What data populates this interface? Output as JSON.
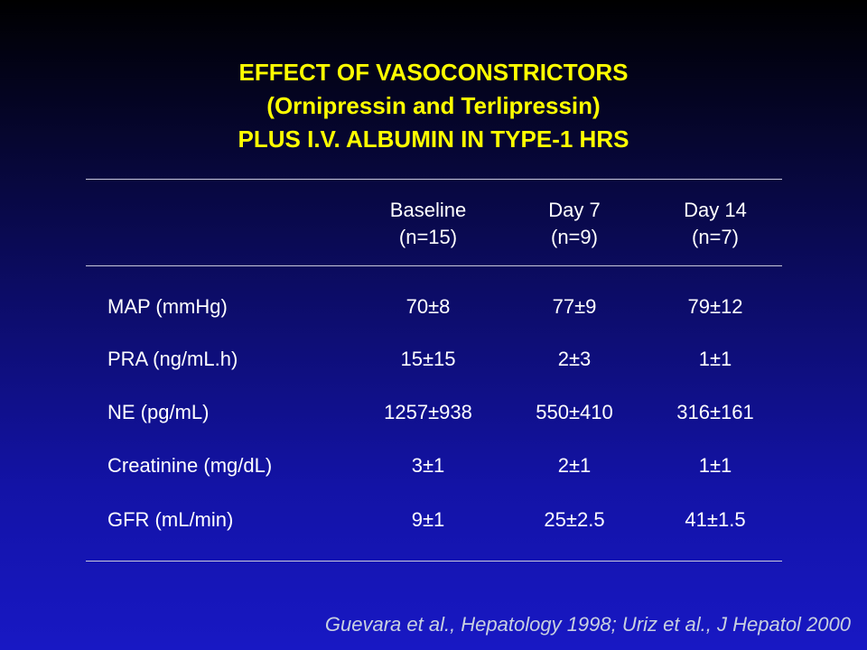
{
  "slide": {
    "title_lines": [
      "EFFECT OF VASOCONSTRICTORS",
      "(Ornipressin and Terlipressin)",
      "PLUS I.V. ALBUMIN IN TYPE-1 HRS"
    ],
    "columns": [
      {
        "name": "Baseline",
        "n": "(n=15)"
      },
      {
        "name": "Day 7",
        "n": "(n=9)"
      },
      {
        "name": "Day 14",
        "n": "(n=7)"
      }
    ],
    "rows": [
      {
        "label": "MAP (mmHg)",
        "values": [
          "70±8",
          "77±9",
          "79±12"
        ]
      },
      {
        "label": "PRA (ng/mL.h)",
        "values": [
          "15±15",
          "2±3",
          "1±1"
        ]
      },
      {
        "label": "NE (pg/mL)",
        "values": [
          "1257±938",
          "550±410",
          "316±161"
        ]
      },
      {
        "label": "Creatinine (mg/dL)",
        "values": [
          "3±1",
          "2±1",
          "1±1"
        ]
      },
      {
        "label": "GFR (mL/min)",
        "values": [
          "9±1",
          "25±2.5",
          "41±1.5"
        ]
      }
    ],
    "citation": "Guevara et al., Hepatology 1998; Uriz et al., J Hepatol 2000",
    "colors": {
      "title": "#ffff00",
      "text": "#ffffff",
      "citation": "#c8d0e0",
      "background_top": "#000000",
      "background_bottom": "#1818c4"
    }
  }
}
